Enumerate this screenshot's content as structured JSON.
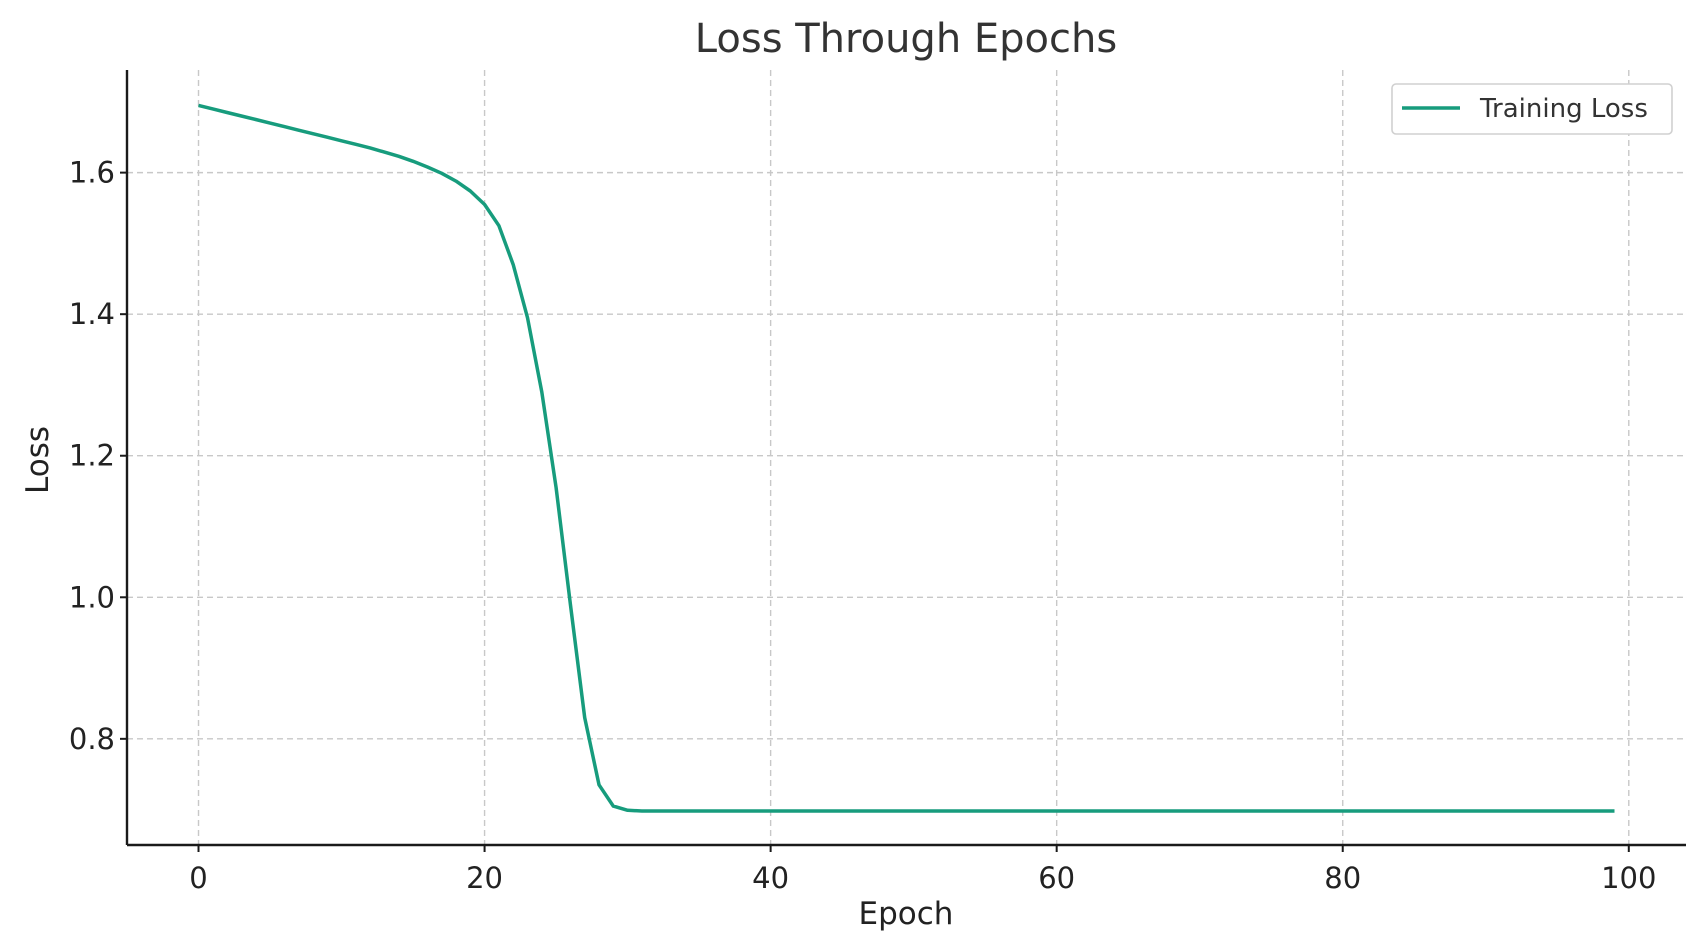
{
  "chart_data": {
    "type": "line",
    "title": "Loss Through Epochs",
    "xlabel": "Epoch",
    "ylabel": "Loss",
    "xlim": [
      -5,
      104
    ],
    "ylim": [
      0.65,
      1.745
    ],
    "xticks": [
      0,
      20,
      40,
      60,
      80,
      100
    ],
    "yticks": [
      0.8,
      1.0,
      1.2,
      1.4,
      1.6
    ],
    "xtick_labels": [
      "0",
      "20",
      "40",
      "60",
      "80",
      "100"
    ],
    "ytick_labels": [
      "0.8",
      "1.0",
      "1.2",
      "1.4",
      "1.6"
    ],
    "grid": true,
    "legend_position": "top-right",
    "series": [
      {
        "name": "Training Loss",
        "color": "#179c7d",
        "x": [
          0,
          1,
          2,
          3,
          4,
          5,
          6,
          7,
          8,
          9,
          10,
          11,
          12,
          13,
          14,
          15,
          16,
          17,
          18,
          19,
          20,
          21,
          22,
          23,
          24,
          25,
          26,
          27,
          28,
          29,
          30,
          31,
          32,
          33,
          34,
          35,
          36,
          37,
          38,
          39,
          40,
          41,
          42,
          43,
          44,
          45,
          46,
          47,
          48,
          49,
          50,
          51,
          52,
          53,
          54,
          55,
          56,
          57,
          58,
          59,
          60,
          61,
          62,
          63,
          64,
          65,
          66,
          67,
          68,
          69,
          70,
          71,
          72,
          73,
          74,
          75,
          76,
          77,
          78,
          79,
          80,
          81,
          82,
          83,
          84,
          85,
          86,
          87,
          88,
          89,
          90,
          91,
          92,
          93,
          94,
          95,
          96,
          97,
          98,
          99
        ],
        "y": [
          1.695,
          1.69,
          1.685,
          1.68,
          1.675,
          1.67,
          1.665,
          1.66,
          1.655,
          1.65,
          1.645,
          1.64,
          1.635,
          1.629,
          1.623,
          1.616,
          1.608,
          1.599,
          1.588,
          1.574,
          1.555,
          1.525,
          1.47,
          1.395,
          1.29,
          1.155,
          0.99,
          0.83,
          0.735,
          0.705,
          0.699,
          0.698,
          0.698,
          0.698,
          0.698,
          0.698,
          0.698,
          0.698,
          0.698,
          0.698,
          0.698,
          0.698,
          0.698,
          0.698,
          0.698,
          0.698,
          0.698,
          0.698,
          0.698,
          0.698,
          0.698,
          0.698,
          0.698,
          0.698,
          0.698,
          0.698,
          0.698,
          0.698,
          0.698,
          0.698,
          0.698,
          0.698,
          0.698,
          0.698,
          0.698,
          0.698,
          0.698,
          0.698,
          0.698,
          0.698,
          0.698,
          0.698,
          0.698,
          0.698,
          0.698,
          0.698,
          0.698,
          0.698,
          0.698,
          0.698,
          0.698,
          0.698,
          0.698,
          0.698,
          0.698,
          0.698,
          0.698,
          0.698,
          0.698,
          0.698,
          0.698,
          0.698,
          0.698,
          0.698,
          0.698,
          0.698,
          0.698,
          0.698,
          0.698,
          0.698
        ]
      }
    ]
  }
}
